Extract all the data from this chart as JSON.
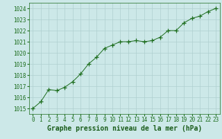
{
  "x": [
    0,
    1,
    2,
    3,
    4,
    5,
    6,
    7,
    8,
    9,
    10,
    11,
    12,
    13,
    14,
    15,
    16,
    17,
    18,
    19,
    20,
    21,
    22,
    23
  ],
  "y": [
    1015.0,
    1015.6,
    1016.7,
    1016.6,
    1016.9,
    1017.4,
    1018.1,
    1019.0,
    1019.6,
    1020.4,
    1020.7,
    1021.0,
    1021.0,
    1021.1,
    1021.0,
    1021.1,
    1021.4,
    1022.0,
    1022.0,
    1022.7,
    1023.1,
    1023.3,
    1023.7,
    1024.0
  ],
  "line_color": "#1a6b1a",
  "marker": "+",
  "marker_size": 4,
  "marker_color": "#1a6b1a",
  "bg_color": "#cce8e8",
  "grid_color": "#aecfcf",
  "xlabel": "Graphe pression niveau de la mer (hPa)",
  "xlabel_color": "#1a5c1a",
  "xlabel_fontsize": 7,
  "tick_color": "#1a6b1a",
  "tick_fontsize": 5.5,
  "ylim": [
    1014.5,
    1024.5
  ],
  "xlim": [
    -0.5,
    23.5
  ],
  "yticks": [
    1015,
    1016,
    1017,
    1018,
    1019,
    1020,
    1021,
    1022,
    1023,
    1024
  ],
  "xticks": [
    0,
    1,
    2,
    3,
    4,
    5,
    6,
    7,
    8,
    9,
    10,
    11,
    12,
    13,
    14,
    15,
    16,
    17,
    18,
    19,
    20,
    21,
    22,
    23
  ]
}
